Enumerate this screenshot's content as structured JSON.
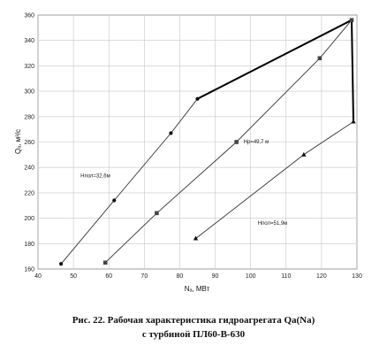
{
  "chart_data": {
    "type": "line",
    "xlabel": "Nₐ, МВт",
    "ylabel": "Qₐ, м³/с",
    "xlim": [
      40,
      130
    ],
    "ylim": [
      160,
      360
    ],
    "xticks": [
      40,
      50,
      60,
      70,
      80,
      90,
      100,
      110,
      120,
      130
    ],
    "yticks": [
      160,
      180,
      200,
      220,
      240,
      260,
      280,
      300,
      320,
      340,
      360
    ],
    "grid": true,
    "series": [
      {
        "name": "Нпол=32,6м",
        "marker": "circle",
        "points": [
          [
            46.5,
            164
          ],
          [
            61.5,
            214
          ],
          [
            77.5,
            267
          ],
          [
            85,
            294
          ]
        ]
      },
      {
        "name": "Нр=49,7 м",
        "marker": "square",
        "points": [
          [
            59,
            165
          ],
          [
            73.5,
            204
          ],
          [
            96,
            260
          ],
          [
            119.5,
            326
          ],
          [
            128.5,
            356
          ]
        ]
      },
      {
        "name": "Нпол=51,9м",
        "marker": "triangle",
        "points": [
          [
            84.5,
            184
          ],
          [
            115,
            250
          ],
          [
            129,
            276
          ]
        ]
      }
    ],
    "limit_lines": [
      {
        "points": [
          [
            85,
            294
          ],
          [
            128.5,
            356
          ]
        ]
      },
      {
        "points": [
          [
            128.5,
            356
          ],
          [
            129,
            276
          ]
        ]
      }
    ],
    "annotations": [
      {
        "text": "Нпол=32,6м",
        "x": 52,
        "y": 232
      },
      {
        "text": "Нр=49,7 м",
        "x": 98,
        "y": 259
      },
      {
        "text": "Нпол=51,9м",
        "x": 102,
        "y": 195
      }
    ]
  },
  "caption": {
    "line1": "Рис. 22. Рабочая характеристика гидроагрегата    Qа(Nа)",
    "line2": "с турбиной ПЛ60-В-630"
  }
}
